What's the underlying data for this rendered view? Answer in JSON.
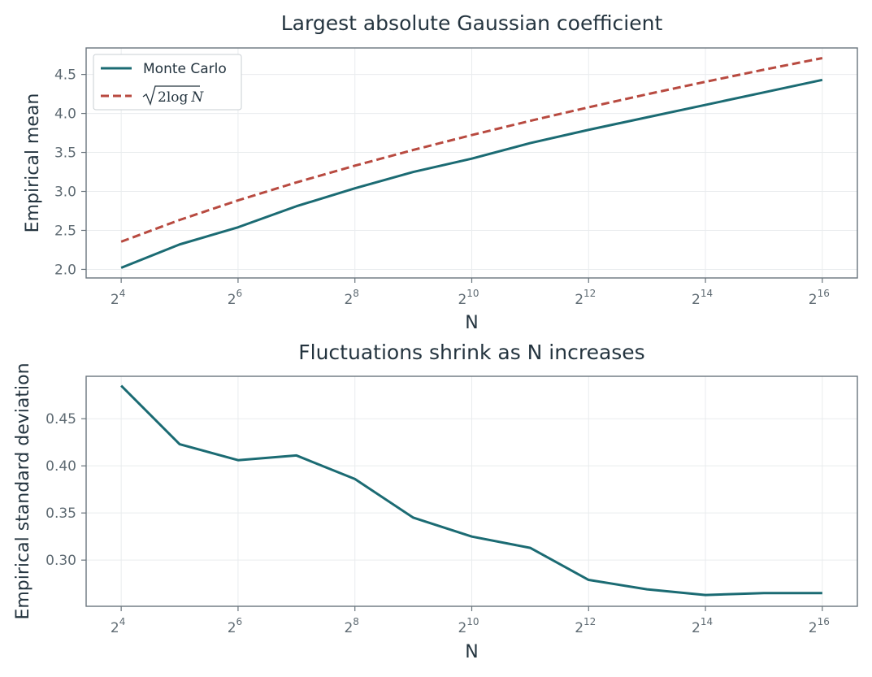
{
  "chart_data": [
    {
      "type": "line",
      "title": "Largest absolute Gaussian coefficient",
      "xlabel": "N",
      "ylabel": "Empirical mean",
      "x_scale": "log2",
      "x_exponents": [
        4,
        5,
        6,
        7,
        8,
        9,
        10,
        11,
        12,
        13,
        14,
        15,
        16
      ],
      "x_tick_exponents": [
        4,
        6,
        8,
        10,
        12,
        14,
        16
      ],
      "x_tick_base": "2",
      "xlim_exp": [
        3.4,
        16.6
      ],
      "y_ticks": [
        2.0,
        2.5,
        3.0,
        3.5,
        4.0,
        4.5
      ],
      "y_tick_labels": [
        "2.0",
        "2.5",
        "3.0",
        "3.5",
        "4.0",
        "4.5"
      ],
      "ylim": [
        1.89,
        4.84
      ],
      "grid": true,
      "legend": "top-left",
      "series": [
        {
          "name": "Monte Carlo",
          "color": "#1b6b73",
          "style": "solid",
          "values": [
            2.02,
            2.32,
            2.54,
            2.81,
            3.04,
            3.25,
            3.42,
            3.62,
            3.79,
            3.95,
            4.11,
            4.27,
            4.43
          ]
        },
        {
          "name": "√2log N",
          "legend_radicand": "2log",
          "legend_var": "N",
          "color": "#b84a40",
          "style": "dashed",
          "values": [
            2.355,
            2.634,
            2.885,
            3.116,
            3.33,
            3.532,
            3.723,
            3.905,
            4.079,
            4.246,
            4.406,
            4.561,
            4.71
          ]
        }
      ]
    },
    {
      "type": "line",
      "title": "Fluctuations shrink as N increases",
      "xlabel": "N",
      "ylabel": "Empirical standard deviation",
      "x_scale": "log2",
      "x_exponents": [
        4,
        5,
        6,
        7,
        8,
        9,
        10,
        11,
        12,
        13,
        14,
        15,
        16
      ],
      "x_tick_exponents": [
        4,
        6,
        8,
        10,
        12,
        14,
        16
      ],
      "x_tick_base": "2",
      "xlim_exp": [
        3.4,
        16.6
      ],
      "y_ticks": [
        0.3,
        0.35,
        0.4,
        0.45
      ],
      "y_tick_labels": [
        "0.30",
        "0.35",
        "0.40",
        "0.45"
      ],
      "ylim": [
        0.251,
        0.495
      ],
      "grid": true,
      "series": [
        {
          "color": "#1b6b73",
          "style": "solid",
          "values": [
            0.485,
            0.423,
            0.406,
            0.411,
            0.386,
            0.345,
            0.325,
            0.313,
            0.279,
            0.269,
            0.263,
            0.265,
            0.265
          ]
        }
      ]
    }
  ]
}
